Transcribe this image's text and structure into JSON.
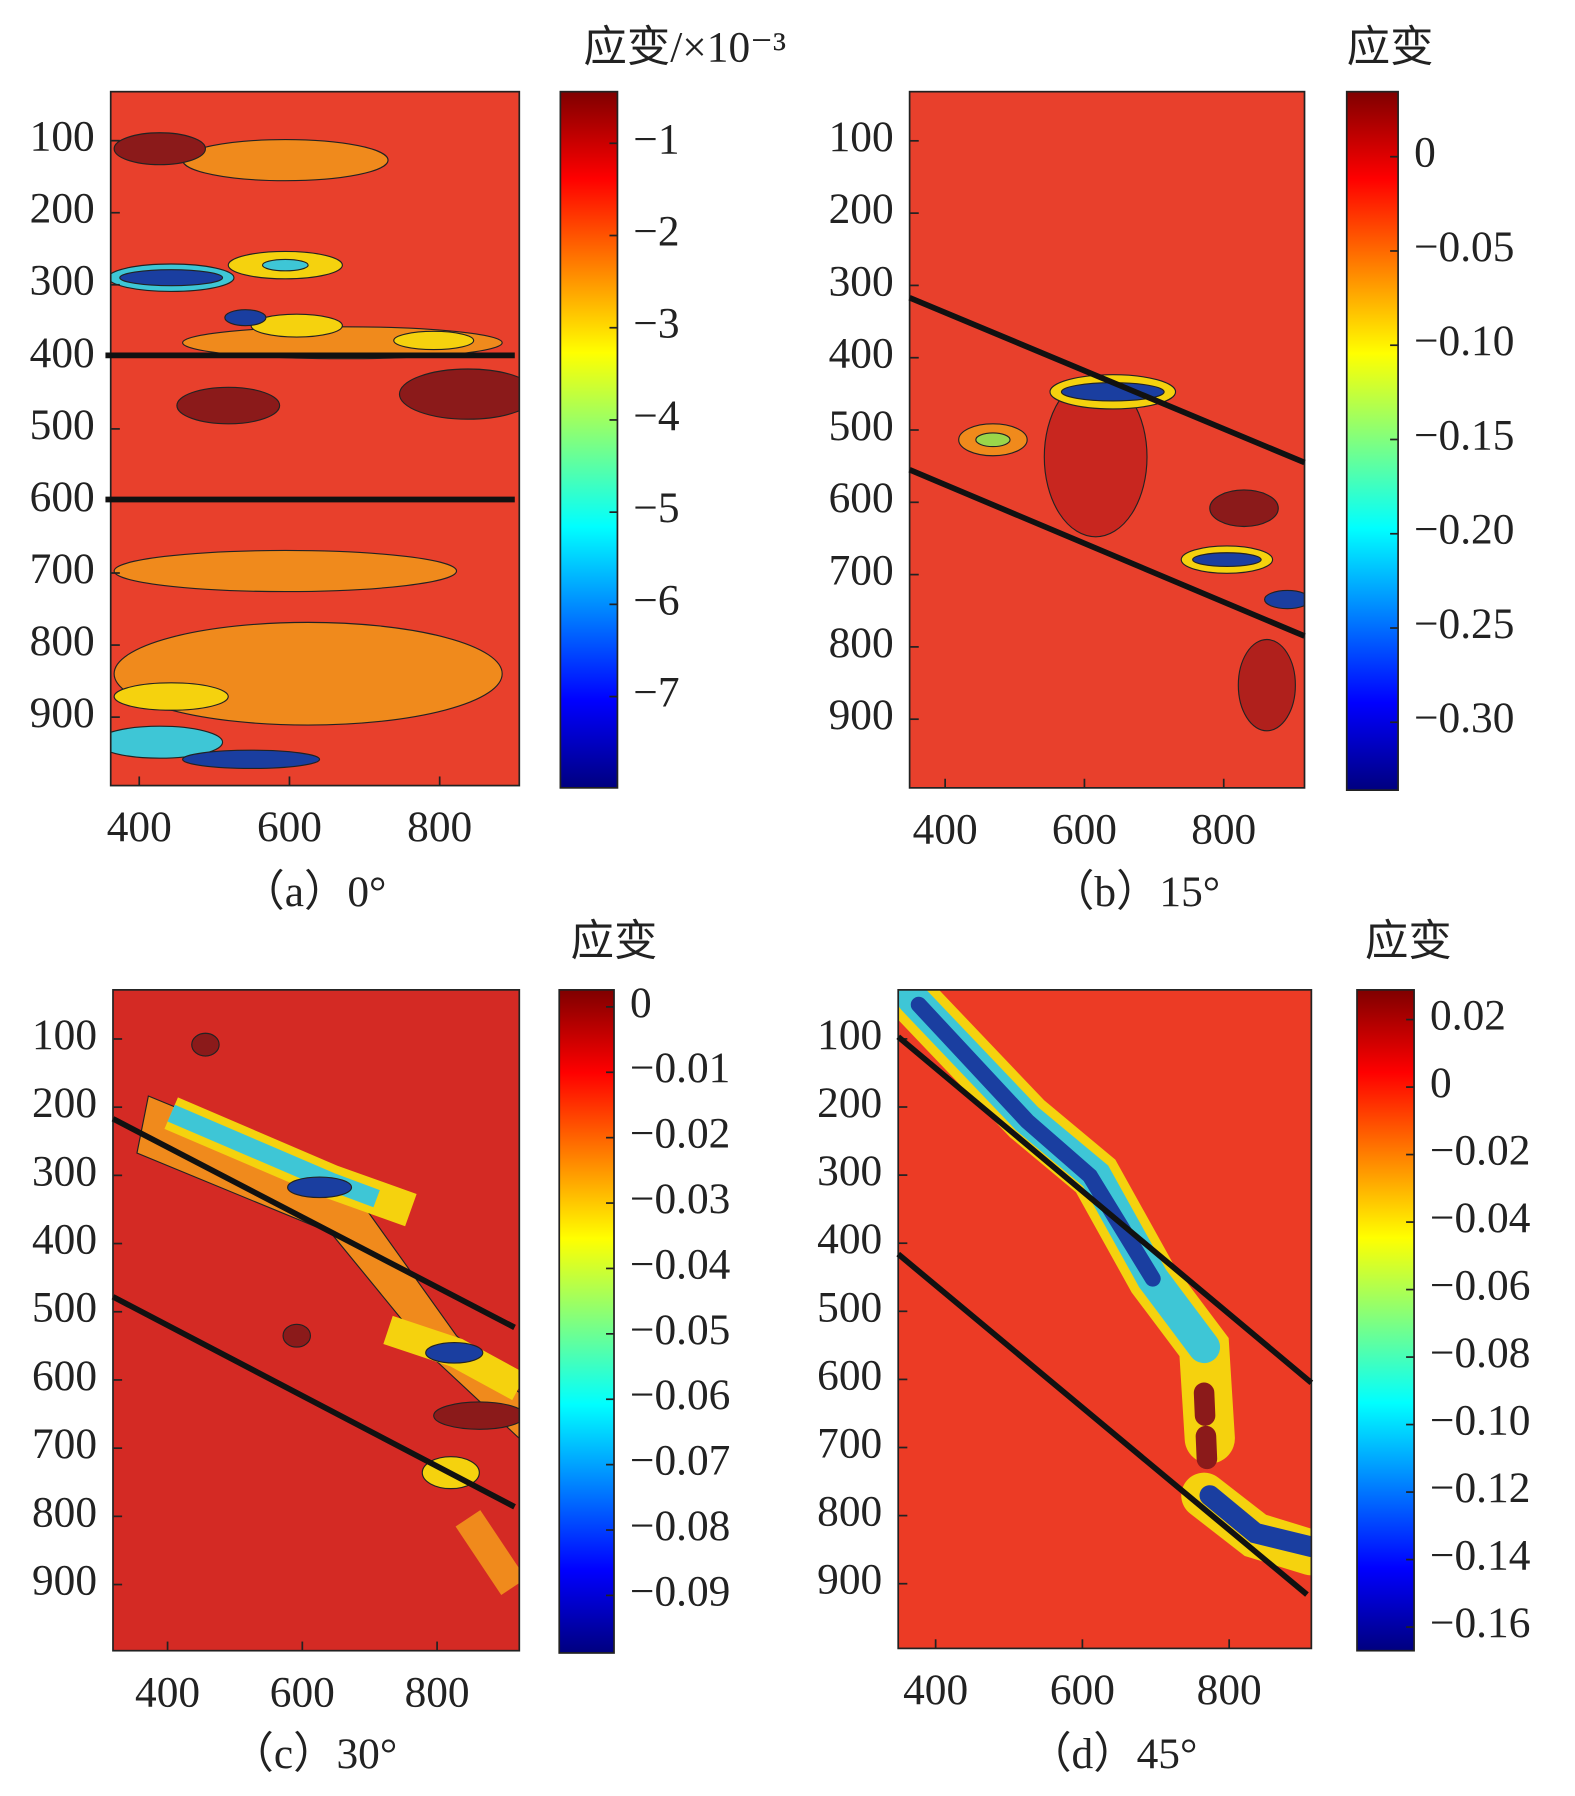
{
  "chart_data": [
    {
      "type": "contour",
      "caption": "（a）0°",
      "colorbar_label": "应变/×10⁻³",
      "colormap": "jet",
      "background": "#e8402c",
      "line_color": "#111111",
      "y_reversed": true,
      "xlim": [
        362,
        906
      ],
      "xticks": [
        400,
        600,
        800
      ],
      "ylim": [
        32,
        995
      ],
      "yticks": [
        100,
        200,
        300,
        400,
        500,
        600,
        700,
        800,
        900
      ],
      "clim": [
        -7.99,
        -0.44
      ],
      "cticks": [
        {
          "value": -1,
          "label": "−1"
        },
        {
          "value": -2,
          "label": "−2"
        },
        {
          "value": -3,
          "label": "−3"
        },
        {
          "value": -4,
          "label": "−4"
        },
        {
          "value": -5,
          "label": "−5"
        },
        {
          "value": -6,
          "label": "−6"
        },
        {
          "value": -7,
          "label": "−7"
        }
      ],
      "lines": [
        {
          "x": [
            355,
            900
          ],
          "y": [
            398,
            398
          ]
        },
        {
          "x": [
            355,
            900
          ],
          "y": [
            598,
            598
          ]
        }
      ]
    },
    {
      "type": "contour",
      "caption": "（b）15°",
      "colorbar_label": "应变",
      "colormap": "jet",
      "background": "#e8402c",
      "line_color": "#111111",
      "y_reversed": true,
      "xlim": [
        349,
        916
      ],
      "xticks": [
        400,
        600,
        800
      ],
      "ylim": [
        32,
        995
      ],
      "yticks": [
        100,
        200,
        300,
        400,
        500,
        600,
        700,
        800,
        900
      ],
      "clim": [
        -0.336,
        0.0345
      ],
      "cticks": [
        0,
        {
          "value": -0.05,
          "label": "−0.05"
        },
        {
          "value": -0.1,
          "label": "−0.10"
        },
        {
          "value": -0.15,
          "label": "−0.15"
        },
        {
          "value": -0.2,
          "label": "−0.20"
        },
        {
          "value": -0.25,
          "label": "−0.25"
        },
        {
          "value": -0.3,
          "label": "−0.30"
        }
      ],
      "lines": [
        {
          "x": [
            349,
            916
          ],
          "y": [
            317,
            545
          ]
        },
        {
          "x": [
            349,
            916
          ],
          "y": [
            555,
            785
          ]
        }
      ]
    },
    {
      "type": "contour",
      "caption": "（c）30°",
      "colorbar_label": "应变",
      "colormap": "jet",
      "background": "#d42a24",
      "line_color": "#111111",
      "y_reversed": true,
      "xlim": [
        319,
        922
      ],
      "xticks": [
        400,
        600,
        800
      ],
      "ylim": [
        28,
        997
      ],
      "yticks": [
        100,
        200,
        300,
        400,
        500,
        600,
        700,
        800,
        900
      ],
      "clim": [
        -0.0988,
        0.0026
      ],
      "cticks": [
        0,
        {
          "value": -0.01,
          "label": "−0.01"
        },
        {
          "value": -0.02,
          "label": "−0.02"
        },
        {
          "value": -0.03,
          "label": "−0.03"
        },
        {
          "value": -0.04,
          "label": "−0.04"
        },
        {
          "value": -0.05,
          "label": "−0.05"
        },
        {
          "value": -0.06,
          "label": "−0.06"
        },
        {
          "value": -0.07,
          "label": "−0.07"
        },
        {
          "value": -0.08,
          "label": "−0.08"
        },
        {
          "value": -0.09,
          "label": "−0.09"
        }
      ],
      "lines": [
        {
          "x": [
            319,
            915
          ],
          "y": [
            217,
            523
          ]
        },
        {
          "x": [
            319,
            915
          ],
          "y": [
            478,
            786
          ]
        }
      ]
    },
    {
      "type": "contour",
      "caption": "（d）45°",
      "colorbar_label": "应变",
      "colormap": "jet",
      "background": "#ec3b25",
      "line_color": "#111111",
      "y_reversed": true,
      "xlim": [
        349,
        912
      ],
      "xticks": [
        400,
        600,
        800
      ],
      "ylim": [
        28,
        995
      ],
      "yticks": [
        100,
        200,
        300,
        400,
        500,
        600,
        700,
        800,
        900
      ],
      "clim": [
        -0.167,
        0.0288
      ],
      "cticks": [
        0.02,
        0,
        {
          "value": -0.02,
          "label": "−0.02"
        },
        {
          "value": -0.04,
          "label": "−0.04"
        },
        {
          "value": -0.06,
          "label": "−0.06"
        },
        {
          "value": -0.08,
          "label": "−0.08"
        },
        {
          "value": -0.1,
          "label": "−0.10"
        },
        {
          "value": -0.12,
          "label": "−0.12"
        },
        {
          "value": -0.14,
          "label": "−0.14"
        },
        {
          "value": -0.16,
          "label": "−0.16"
        }
      ],
      "lines": [
        {
          "x": [
            349,
            912
          ],
          "y": [
            97,
            605
          ]
        },
        {
          "x": [
            349,
            906
          ],
          "y": [
            416,
            916
          ]
        }
      ]
    }
  ]
}
